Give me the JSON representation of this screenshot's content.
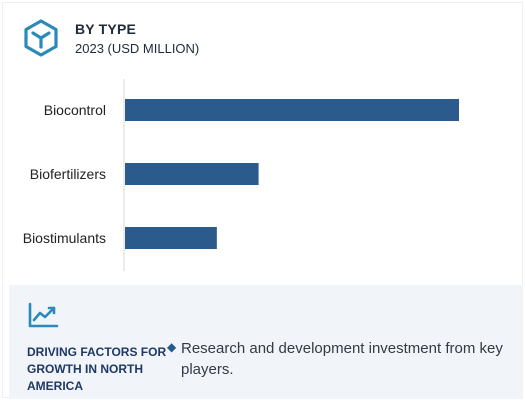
{
  "header": {
    "title": "BY TYPE",
    "subtitle": "2023 (USD MILLION)",
    "icon": "cube-icon"
  },
  "chart_data": {
    "type": "bar",
    "orientation": "horizontal",
    "categories": [
      "Biocontrol",
      "Biofertilizers",
      "Biostimulants"
    ],
    "values": [
      100,
      40,
      27.5
    ],
    "value_scale": "relative (no axis printed)",
    "bar_color": "#2b5a8c",
    "grid": false,
    "legend": "none"
  },
  "driving_factors": {
    "icon": "trend-line-icon",
    "title": "DRIVING FACTORS FOR GROWTH IN NORTH AMERICA",
    "bullets": [
      "Research and development investment from key players."
    ]
  },
  "colors": {
    "accent": "#2b5a8c",
    "panel_background": "#f1f4f9",
    "heading_text": "#1f3864"
  }
}
